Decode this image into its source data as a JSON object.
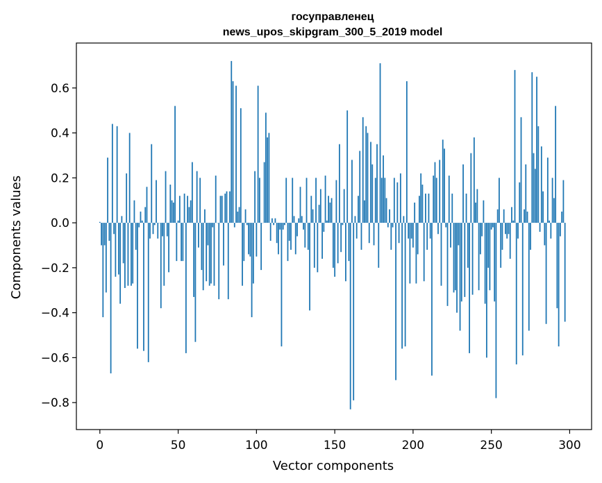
{
  "chart_data": {
    "type": "bar",
    "title_line1": "госуправленец",
    "title_line2": "news_upos_skipgram_300_5_2019 model",
    "xlabel": "Vector components",
    "ylabel": "Components values",
    "xlim": [
      -15,
      314
    ],
    "ylim": [
      -0.92,
      0.8
    ],
    "xticks": [
      0,
      50,
      100,
      150,
      200,
      250,
      300
    ],
    "xtick_labels": [
      "0",
      "50",
      "100",
      "150",
      "200",
      "250",
      "300"
    ],
    "yticks": [
      -0.8,
      -0.6,
      -0.4,
      -0.2,
      0.0,
      0.2,
      0.4,
      0.6
    ],
    "ytick_labels": [
      "−0.8",
      "−0.6",
      "−0.4",
      "−0.2",
      "0.0",
      "0.2",
      "0.4",
      "0.6"
    ],
    "bar_color": "#1f77b4",
    "values": [
      0.004,
      -0.1,
      -0.42,
      -0.1,
      -0.31,
      0.29,
      -0.08,
      -0.67,
      0.44,
      -0.05,
      -0.24,
      0.43,
      -0.23,
      -0.36,
      0.03,
      -0.18,
      -0.29,
      0.22,
      -0.28,
      0.4,
      -0.28,
      -0.27,
      0.1,
      -0.12,
      -0.56,
      -0.02,
      0.05,
      0.01,
      -0.57,
      0.07,
      0.16,
      -0.62,
      -0.07,
      0.35,
      -0.05,
      -0.01,
      0.19,
      -0.07,
      0.0,
      -0.38,
      -0.06,
      -0.28,
      0.23,
      -0.06,
      -0.22,
      0.17,
      0.1,
      0.09,
      0.52,
      -0.17,
      0.01,
      0.12,
      -0.17,
      -0.17,
      0.13,
      -0.58,
      0.12,
      0.07,
      0.1,
      0.27,
      -0.33,
      -0.53,
      0.23,
      -0.11,
      0.2,
      -0.21,
      -0.3,
      0.06,
      -0.26,
      -0.1,
      -0.28,
      -0.27,
      -0.02,
      -0.28,
      0.21,
      0.0,
      -0.34,
      0.12,
      0.12,
      -0.19,
      0.13,
      0.14,
      -0.34,
      0.14,
      0.72,
      0.63,
      -0.02,
      0.61,
      0.05,
      0.07,
      0.51,
      -0.28,
      -0.17,
      0.06,
      -0.01,
      -0.14,
      -0.15,
      -0.42,
      -0.27,
      0.23,
      -0.15,
      0.61,
      0.2,
      -0.21,
      0.0,
      0.27,
      0.49,
      0.38,
      0.4,
      -0.08,
      0.02,
      -0.01,
      0.02,
      -0.09,
      -0.14,
      -0.03,
      -0.55,
      -0.03,
      -0.01,
      0.2,
      -0.17,
      -0.08,
      -0.12,
      0.2,
      0.03,
      -0.14,
      -0.06,
      0.02,
      0.16,
      0.03,
      -0.03,
      -0.11,
      0.2,
      -0.12,
      -0.39,
      0.12,
      0.06,
      -0.2,
      0.2,
      -0.22,
      0.08,
      0.15,
      -0.16,
      -0.04,
      0.21,
      0.01,
      0.12,
      0.09,
      0.11,
      -0.2,
      -0.24,
      0.19,
      -0.18,
      0.35,
      -0.13,
      -0.01,
      0.15,
      -0.26,
      0.5,
      -0.17,
      -0.83,
      0.28,
      -0.79,
      0.03,
      -0.07,
      0.12,
      0.32,
      -0.12,
      0.47,
      0.1,
      0.43,
      0.4,
      -0.09,
      0.36,
      0.26,
      -0.1,
      0.2,
      0.35,
      -0.2,
      0.71,
      0.2,
      0.3,
      0.2,
      0.11,
      -0.02,
      0.06,
      -0.12,
      -0.02,
      0.2,
      -0.7,
      0.18,
      -0.09,
      0.22,
      -0.56,
      0.03,
      -0.55,
      0.63,
      -0.07,
      -0.27,
      -0.07,
      -0.11,
      0.09,
      -0.27,
      -0.14,
      0.12,
      0.22,
      0.17,
      -0.26,
      0.13,
      -0.12,
      0.13,
      -0.07,
      -0.68,
      0.21,
      0.27,
      0.2,
      -0.05,
      0.28,
      -0.28,
      0.37,
      0.33,
      -0.02,
      -0.37,
      0.21,
      -0.11,
      0.13,
      -0.31,
      -0.3,
      -0.4,
      -0.1,
      -0.48,
      -0.35,
      0.26,
      -0.33,
      0.13,
      -0.2,
      -0.58,
      0.31,
      -0.32,
      0.38,
      0.09,
      0.15,
      -0.3,
      -0.14,
      -0.06,
      0.1,
      -0.36,
      -0.6,
      -0.2,
      -0.3,
      -0.03,
      -0.02,
      -0.35,
      -0.78,
      0.06,
      0.2,
      -0.2,
      -0.12,
      0.06,
      -0.05,
      -0.07,
      -0.05,
      -0.16,
      0.07,
      0.01,
      0.68,
      -0.63,
      -0.07,
      0.18,
      0.47,
      -0.59,
      0.06,
      0.26,
      0.05,
      -0.48,
      -0.12,
      0.67,
      0.31,
      0.24,
      0.65,
      0.43,
      -0.04,
      0.34,
      0.14,
      -0.1,
      -0.45,
      0.29,
      0.01,
      -0.07,
      0.2,
      0.11,
      0.52,
      -0.38,
      -0.55,
      -0.06,
      0.05,
      0.19,
      -0.44
    ]
  }
}
